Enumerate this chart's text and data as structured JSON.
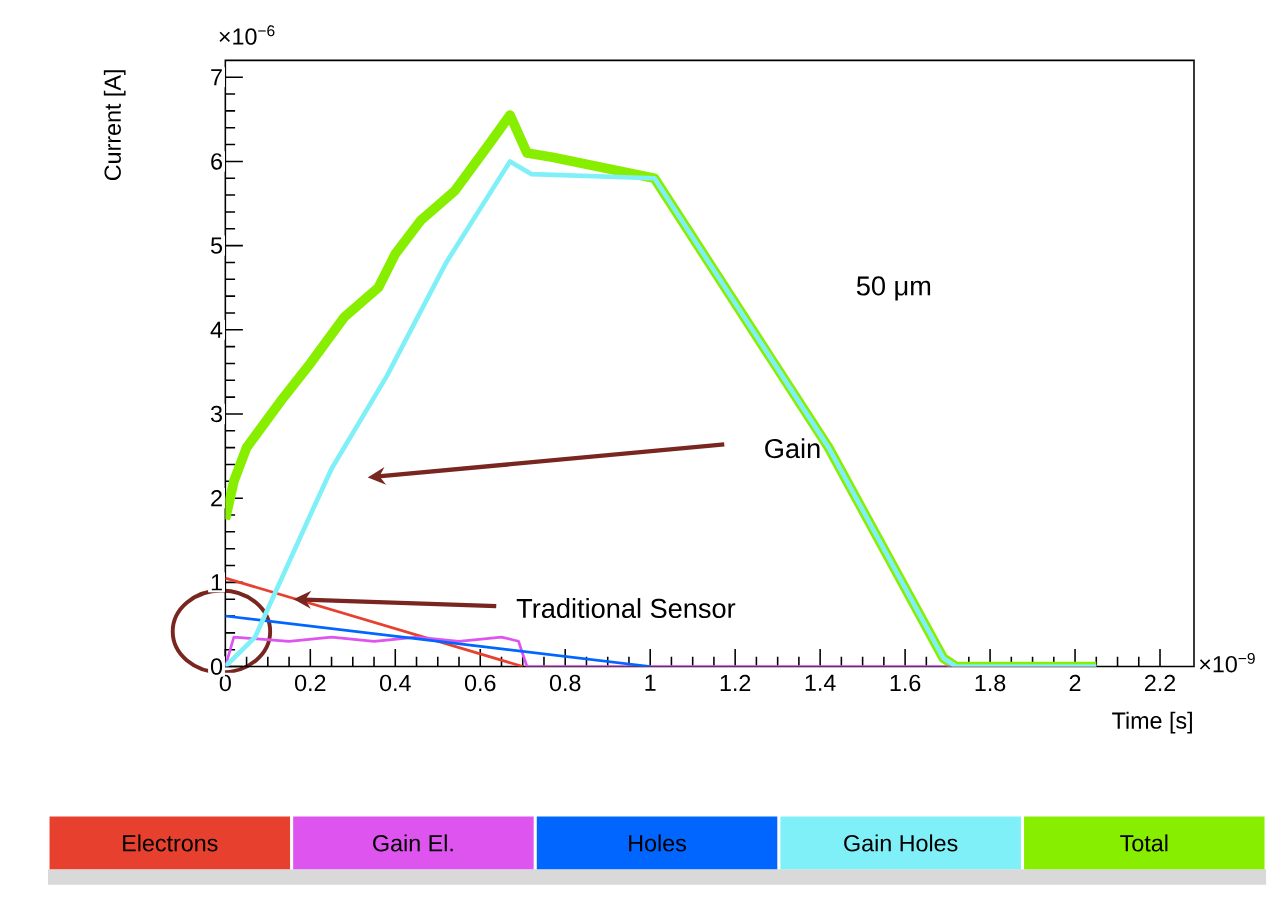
{
  "chart_data": {
    "type": "line",
    "xlabel": "Time [s]",
    "ylabel": "Current [A]",
    "xlim": [
      0,
      2.28
    ],
    "ylim": [
      0,
      7.2
    ],
    "xticks": [
      0,
      0.2,
      0.4,
      0.6,
      0.8,
      1,
      1.2,
      1.4,
      1.6,
      1.8,
      2,
      2.2
    ],
    "yticks": [
      0,
      1,
      2,
      3,
      4,
      5,
      6,
      7
    ],
    "legend": "bottom",
    "annotations": [
      "50 μm",
      "Gain",
      {
        "text": "Traditional Sensor",
        "x": 0.16,
        "y": 0.8
      },
      "×10$^{−6}$",
      "×10$^{−9}$"
    ],
    "series": [
      {
        "name": "Electrons",
        "color": "#e8402e",
        "x": [
          0,
          0.7
        ],
        "values": [
          1.05,
          0
        ]
      },
      {
        "name": "Gain El.",
        "color": "#dd55ee",
        "x": [
          0,
          0.02,
          0.15,
          0.25,
          0.35,
          0.45,
          0.55,
          0.65,
          0.69,
          0.71,
          2.05
        ],
        "values": [
          0,
          0.35,
          0.3,
          0.35,
          0.3,
          0.35,
          0.3,
          0.35,
          0.3,
          0,
          0
        ]
      },
      {
        "name": "Holes",
        "color": "#0066ff",
        "x": [
          0,
          1
        ],
        "values": [
          0.6,
          0
        ]
      },
      {
        "name": "Gain Holes",
        "color": "#80f0f8",
        "x": [
          0,
          0.07,
          0.2,
          0.25,
          0.38,
          0.52,
          0.67,
          0.72,
          1.01,
          1.42,
          1.69,
          1.72,
          2.05
        ],
        "values": [
          0,
          0.35,
          1.8,
          2.35,
          3.45,
          4.8,
          6,
          5.85,
          5.8,
          2.6,
          0.1,
          0,
          0
        ]
      },
      {
        "name": "Total",
        "color": "#88ee00",
        "x": [
          0,
          0.02,
          0.05,
          0.13,
          0.2,
          0.28,
          0.36,
          0.4,
          0.46,
          0.54,
          0.62,
          0.67,
          0.71,
          0.77,
          1.01,
          1.42,
          1.69,
          1.72,
          2.05
        ],
        "values": [
          1.75,
          2.2,
          2.6,
          3.15,
          3.6,
          4.15,
          4.5,
          4.9,
          5.3,
          5.65,
          6.2,
          6.55,
          6.1,
          6.05,
          5.8,
          2.6,
          0.1,
          0,
          0
        ]
      }
    ]
  }
}
